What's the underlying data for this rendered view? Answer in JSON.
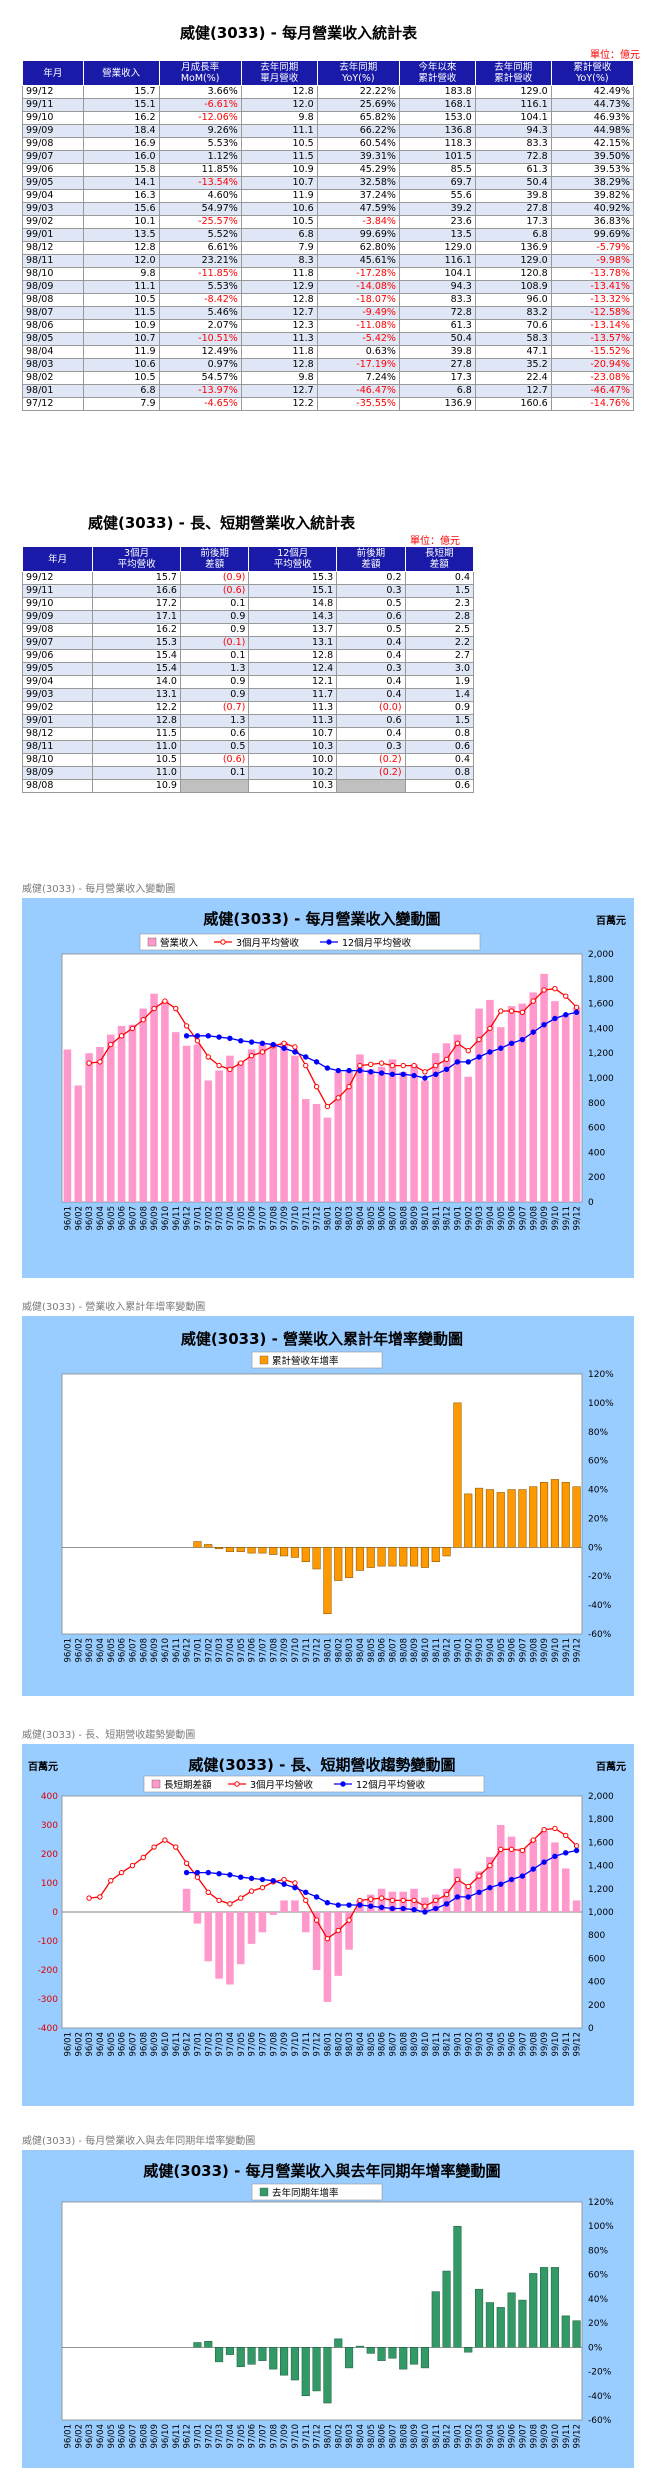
{
  "table1": {
    "title": "威健(3033) - 每月營業收入統計表",
    "unit": "單位：億元",
    "headers": [
      "年月",
      "營業收入",
      "月成長率\nMoM(%)",
      "去年同期\n單月營收",
      "去年同期\nYoY(%)",
      "今年以來\n累計營收",
      "去年同期\n累計營收",
      "累計營收\nYoY(%)"
    ],
    "rows": [
      [
        "99/12",
        "15.7",
        "3.66%",
        "12.8",
        "22.22%",
        "183.8",
        "129.0",
        "42.49%"
      ],
      [
        "99/11",
        "15.1",
        "-6.61%",
        "12.0",
        "25.69%",
        "168.1",
        "116.1",
        "44.73%"
      ],
      [
        "99/10",
        "16.2",
        "-12.06%",
        "9.8",
        "65.82%",
        "153.0",
        "104.1",
        "46.93%"
      ],
      [
        "99/09",
        "18.4",
        "9.26%",
        "11.1",
        "66.22%",
        "136.8",
        "94.3",
        "44.98%"
      ],
      [
        "99/08",
        "16.9",
        "5.53%",
        "10.5",
        "60.54%",
        "118.3",
        "83.3",
        "42.15%"
      ],
      [
        "99/07",
        "16.0",
        "1.12%",
        "11.5",
        "39.31%",
        "101.5",
        "72.8",
        "39.50%"
      ],
      [
        "99/06",
        "15.8",
        "11.85%",
        "10.9",
        "45.29%",
        "85.5",
        "61.3",
        "39.53%"
      ],
      [
        "99/05",
        "14.1",
        "-13.54%",
        "10.7",
        "32.58%",
        "69.7",
        "50.4",
        "38.29%"
      ],
      [
        "99/04",
        "16.3",
        "4.60%",
        "11.9",
        "37.24%",
        "55.6",
        "39.8",
        "39.82%"
      ],
      [
        "99/03",
        "15.6",
        "54.97%",
        "10.6",
        "47.59%",
        "39.2",
        "27.8",
        "40.92%"
      ],
      [
        "99/02",
        "10.1",
        "-25.57%",
        "10.5",
        "-3.84%",
        "23.6",
        "17.3",
        "36.83%"
      ],
      [
        "99/01",
        "13.5",
        "5.52%",
        "6.8",
        "99.69%",
        "13.5",
        "6.8",
        "99.69%"
      ],
      [
        "98/12",
        "12.8",
        "6.61%",
        "7.9",
        "62.80%",
        "129.0",
        "136.9",
        "-5.79%"
      ],
      [
        "98/11",
        "12.0",
        "23.21%",
        "8.3",
        "45.61%",
        "116.1",
        "129.0",
        "-9.98%"
      ],
      [
        "98/10",
        "9.8",
        "-11.85%",
        "11.8",
        "-17.28%",
        "104.1",
        "120.8",
        "-13.78%"
      ],
      [
        "98/09",
        "11.1",
        "5.53%",
        "12.9",
        "-14.08%",
        "94.3",
        "108.9",
        "-13.41%"
      ],
      [
        "98/08",
        "10.5",
        "-8.42%",
        "12.8",
        "-18.07%",
        "83.3",
        "96.0",
        "-13.32%"
      ],
      [
        "98/07",
        "11.5",
        "5.46%",
        "12.7",
        "-9.49%",
        "72.8",
        "83.2",
        "-12.58%"
      ],
      [
        "98/06",
        "10.9",
        "2.07%",
        "12.3",
        "-11.08%",
        "61.3",
        "70.6",
        "-13.14%"
      ],
      [
        "98/05",
        "10.7",
        "-10.51%",
        "11.3",
        "-5.42%",
        "50.4",
        "58.3",
        "-13.57%"
      ],
      [
        "98/04",
        "11.9",
        "12.49%",
        "11.8",
        "0.63%",
        "39.8",
        "47.1",
        "-15.52%"
      ],
      [
        "98/03",
        "10.6",
        "0.97%",
        "12.8",
        "-17.19%",
        "27.8",
        "35.2",
        "-20.94%"
      ],
      [
        "98/02",
        "10.5",
        "54.57%",
        "9.8",
        "7.24%",
        "17.3",
        "22.4",
        "-23.08%"
      ],
      [
        "98/01",
        "6.8",
        "-13.97%",
        "12.7",
        "-46.47%",
        "6.8",
        "12.7",
        "-46.47%"
      ],
      [
        "97/12",
        "7.9",
        "-4.65%",
        "12.2",
        "-35.55%",
        "136.9",
        "160.6",
        "-14.76%"
      ]
    ]
  },
  "table2": {
    "title": "威健(3033) - 長、短期營業收入統計表",
    "unit": "單位：億元",
    "headers": [
      "年月",
      "3個月\n平均營收",
      "前後期\n差額",
      "12個月\n平均營收",
      "前後期\n差額",
      "長短期\n差額"
    ],
    "rows": [
      [
        "99/12",
        "15.7",
        "(0.9)",
        "15.3",
        "0.2",
        "0.4"
      ],
      [
        "99/11",
        "16.6",
        "(0.6)",
        "15.1",
        "0.3",
        "1.5"
      ],
      [
        "99/10",
        "17.2",
        "0.1",
        "14.8",
        "0.5",
        "2.3"
      ],
      [
        "99/09",
        "17.1",
        "0.9",
        "14.3",
        "0.6",
        "2.8"
      ],
      [
        "99/08",
        "16.2",
        "0.9",
        "13.7",
        "0.5",
        "2.5"
      ],
      [
        "99/07",
        "15.3",
        "(0.1)",
        "13.1",
        "0.4",
        "2.2"
      ],
      [
        "99/06",
        "15.4",
        "0.1",
        "12.8",
        "0.4",
        "2.7"
      ],
      [
        "99/05",
        "15.4",
        "1.3",
        "12.4",
        "0.3",
        "3.0"
      ],
      [
        "99/04",
        "14.0",
        "0.9",
        "12.1",
        "0.4",
        "1.9"
      ],
      [
        "99/03",
        "13.1",
        "0.9",
        "11.7",
        "0.4",
        "1.4"
      ],
      [
        "99/02",
        "12.2",
        "(0.7)",
        "11.3",
        "(0.0)",
        "0.9"
      ],
      [
        "99/01",
        "12.8",
        "1.3",
        "11.3",
        "0.6",
        "1.5"
      ],
      [
        "98/12",
        "11.5",
        "0.6",
        "10.7",
        "0.4",
        "0.8"
      ],
      [
        "98/11",
        "11.0",
        "0.5",
        "10.3",
        "0.3",
        "0.6"
      ],
      [
        "98/10",
        "10.5",
        "(0.6)",
        "10.0",
        "(0.2)",
        "0.4"
      ],
      [
        "98/09",
        "11.0",
        "0.1",
        "10.2",
        "(0.2)",
        "0.8"
      ],
      [
        "98/08",
        "10.9",
        "",
        "10.3",
        "",
        "0.6"
      ]
    ]
  },
  "captions": {
    "c1": "威健(3033) - 每月營業收入變動圖",
    "c2": "威健(3033) -  營業收入累計年增率變動圖",
    "c3": "威健(3033) - 長、短期營收趨勢變動圖",
    "c4": "威健(3033) - 每月營業收入與去年同期年增率變動圖"
  },
  "chart_data": [
    {
      "type": "bar",
      "title": "威健(3033) - 每月營業收入變動圖",
      "unit_label": "百萬元",
      "categories": [
        "96/01",
        "96/02",
        "96/03",
        "96/04",
        "96/05",
        "96/06",
        "96/07",
        "96/08",
        "96/09",
        "96/10",
        "96/11",
        "96/12",
        "97/01",
        "97/02",
        "97/03",
        "97/04",
        "97/05",
        "97/06",
        "97/07",
        "97/08",
        "97/09",
        "97/10",
        "97/11",
        "97/12",
        "98/01",
        "98/02",
        "98/03",
        "98/04",
        "98/05",
        "98/06",
        "98/07",
        "98/08",
        "98/09",
        "98/10",
        "98/11",
        "98/12",
        "99/01",
        "99/02",
        "99/03",
        "99/04",
        "99/05",
        "99/06",
        "99/07",
        "99/08",
        "99/09",
        "99/10",
        "99/11",
        "99/12"
      ],
      "series": [
        {
          "name": "營業收入",
          "type": "bar",
          "color": "#ff99cc",
          "values": [
            1230,
            940,
            1200,
            1250,
            1350,
            1420,
            1430,
            1560,
            1680,
            1620,
            1370,
            1260,
            1270,
            980,
            1060,
            1180,
            1130,
            1230,
            1270,
            1280,
            1290,
            1180,
            830,
            790,
            680,
            1050,
            1060,
            1190,
            1070,
            1090,
            1150,
            1050,
            1110,
            980,
            1200,
            1280,
            1350,
            1010,
            1560,
            1630,
            1410,
            1580,
            1600,
            1690,
            1840,
            1620,
            1510,
            1570
          ]
        },
        {
          "name": "3個月平均營收",
          "type": "line",
          "color": "#ff0000",
          "values": [
            null,
            null,
            1120,
            1130,
            1270,
            1340,
            1400,
            1470,
            1560,
            1620,
            1560,
            1420,
            1300,
            1170,
            1100,
            1070,
            1120,
            1180,
            1210,
            1260,
            1280,
            1250,
            1100,
            930,
            770,
            840,
            930,
            1100,
            1110,
            1120,
            1100,
            1100,
            1100,
            1050,
            1100,
            1150,
            1280,
            1220,
            1310,
            1400,
            1540,
            1540,
            1530,
            1620,
            1710,
            1720,
            1660,
            1570
          ]
        },
        {
          "name": "12個月平均營收",
          "type": "line",
          "color": "#0000ff",
          "values": [
            null,
            null,
            null,
            null,
            null,
            null,
            null,
            null,
            null,
            null,
            null,
            1340,
            1340,
            1340,
            1330,
            1320,
            1300,
            1290,
            1280,
            1270,
            1240,
            1210,
            1170,
            1130,
            1080,
            1060,
            1060,
            1060,
            1050,
            1040,
            1030,
            1030,
            1020,
            1000,
            1030,
            1070,
            1130,
            1130,
            1170,
            1210,
            1240,
            1280,
            1310,
            1370,
            1430,
            1480,
            1510,
            1530
          ]
        }
      ],
      "ylim": [
        0,
        2000
      ],
      "yticks": [
        "2,000",
        "1,800",
        "1,600",
        "1,400",
        "1,200",
        "1,000",
        "800",
        "600",
        "400",
        "200",
        "0"
      ]
    },
    {
      "type": "bar",
      "title": "威健(3033) -  營業收入累計年增率變動圖",
      "categories": [
        "96/01",
        "96/02",
        "96/03",
        "96/04",
        "96/05",
        "96/06",
        "96/07",
        "96/08",
        "96/09",
        "96/10",
        "96/11",
        "96/12",
        "97/01",
        "97/02",
        "97/03",
        "97/04",
        "97/05",
        "97/06",
        "97/07",
        "97/08",
        "97/09",
        "97/10",
        "97/11",
        "97/12",
        "98/01",
        "98/02",
        "98/03",
        "98/04",
        "98/05",
        "98/06",
        "98/07",
        "98/08",
        "98/09",
        "98/10",
        "98/11",
        "98/12",
        "99/01",
        "99/02",
        "99/03",
        "99/04",
        "99/05",
        "99/06",
        "99/07",
        "99/08",
        "99/09",
        "99/10",
        "99/11",
        "99/12"
      ],
      "series": [
        {
          "name": "累計營收年增率",
          "color": "#ff9900",
          "values": [
            null,
            null,
            null,
            null,
            null,
            null,
            null,
            null,
            null,
            null,
            null,
            null,
            4,
            2,
            -1,
            -3,
            -3,
            -4,
            -4,
            -5,
            -6,
            -7,
            -10,
            -15,
            -46,
            -23,
            -21,
            -16,
            -14,
            -13,
            -13,
            -13,
            -13,
            -14,
            -10,
            -6,
            100,
            37,
            41,
            40,
            38,
            40,
            40,
            42,
            45,
            47,
            45,
            42
          ]
        }
      ],
      "ylim": [
        -60,
        120
      ],
      "yticks": [
        "120%",
        "100%",
        "80%",
        "60%",
        "40%",
        "20%",
        "0%",
        "-20%",
        "-40%",
        "-60%"
      ]
    },
    {
      "type": "bar",
      "title": "威健(3033) - 長、短期營收趨勢變動圖",
      "unit_label_left": "百萬元",
      "unit_label_right": "百萬元",
      "categories": [
        "96/01",
        "96/02",
        "96/03",
        "96/04",
        "96/05",
        "96/06",
        "96/07",
        "96/08",
        "96/09",
        "96/10",
        "96/11",
        "96/12",
        "97/01",
        "97/02",
        "97/03",
        "97/04",
        "97/05",
        "97/06",
        "97/07",
        "97/08",
        "97/09",
        "97/10",
        "97/11",
        "97/12",
        "98/01",
        "98/02",
        "98/03",
        "98/04",
        "98/05",
        "98/06",
        "98/07",
        "98/08",
        "98/09",
        "98/10",
        "98/11",
        "98/12",
        "99/01",
        "99/02",
        "99/03",
        "99/04",
        "99/05",
        "99/06",
        "99/07",
        "99/08",
        "99/09",
        "99/10",
        "99/11",
        "99/12"
      ],
      "series": [
        {
          "name": "長短期差額",
          "type": "bar",
          "axis": "left",
          "color": "#ff99cc",
          "values": [
            null,
            null,
            null,
            null,
            null,
            null,
            null,
            null,
            null,
            null,
            null,
            80,
            -40,
            -170,
            -230,
            -250,
            -180,
            -110,
            -70,
            -10,
            40,
            40,
            -70,
            -200,
            -310,
            -220,
            -130,
            40,
            60,
            80,
            70,
            70,
            80,
            50,
            60,
            80,
            150,
            90,
            140,
            190,
            300,
            260,
            220,
            250,
            280,
            240,
            150,
            40
          ]
        },
        {
          "name": "3個月平均營收",
          "type": "line",
          "axis": "right",
          "color": "#ff0000",
          "values": [
            null,
            null,
            1120,
            1130,
            1270,
            1340,
            1400,
            1470,
            1560,
            1620,
            1560,
            1420,
            1300,
            1170,
            1100,
            1070,
            1120,
            1180,
            1210,
            1260,
            1280,
            1250,
            1100,
            930,
            770,
            840,
            930,
            1100,
            1110,
            1120,
            1100,
            1100,
            1100,
            1050,
            1100,
            1150,
            1280,
            1220,
            1310,
            1400,
            1540,
            1540,
            1530,
            1620,
            1710,
            1720,
            1660,
            1570
          ]
        },
        {
          "name": "12個月平均營收",
          "type": "line",
          "axis": "right",
          "color": "#0000ff",
          "values": [
            null,
            null,
            null,
            null,
            null,
            null,
            null,
            null,
            null,
            null,
            null,
            1340,
            1340,
            1340,
            1330,
            1320,
            1300,
            1290,
            1280,
            1270,
            1240,
            1210,
            1170,
            1130,
            1080,
            1060,
            1060,
            1060,
            1050,
            1040,
            1030,
            1030,
            1020,
            1000,
            1030,
            1070,
            1130,
            1130,
            1170,
            1210,
            1240,
            1280,
            1310,
            1370,
            1430,
            1480,
            1510,
            1530
          ]
        }
      ],
      "ylim_left": [
        -400,
        400
      ],
      "ylim_right": [
        0,
        2000
      ],
      "yticks_left": [
        "400",
        "300",
        "200",
        "100",
        "0",
        "-100",
        "-200",
        "-300",
        "-400"
      ],
      "yticks_right": [
        "2,000",
        "1,800",
        "1,600",
        "1,400",
        "1,200",
        "1,000",
        "800",
        "600",
        "400",
        "200",
        "0"
      ]
    },
    {
      "type": "bar",
      "title": "威健(3033) - 每月營業收入與去年同期年增率變動圖",
      "categories": [
        "96/01",
        "96/02",
        "96/03",
        "96/04",
        "96/05",
        "96/06",
        "96/07",
        "96/08",
        "96/09",
        "96/10",
        "96/11",
        "96/12",
        "97/01",
        "97/02",
        "97/03",
        "97/04",
        "97/05",
        "97/06",
        "97/07",
        "97/08",
        "97/09",
        "97/10",
        "97/11",
        "97/12",
        "98/01",
        "98/02",
        "98/03",
        "98/04",
        "98/05",
        "98/06",
        "98/07",
        "98/08",
        "98/09",
        "98/10",
        "98/11",
        "98/12",
        "99/01",
        "99/02",
        "99/03",
        "99/04",
        "99/05",
        "99/06",
        "99/07",
        "99/08",
        "99/09",
        "99/10",
        "99/11",
        "99/12"
      ],
      "series": [
        {
          "name": "去年同期年增率",
          "color": "#339966",
          "values": [
            null,
            null,
            null,
            null,
            null,
            null,
            null,
            null,
            null,
            null,
            null,
            null,
            4,
            5,
            -12,
            -6,
            -16,
            -14,
            -11,
            -18,
            -23,
            -27,
            -40,
            -36,
            -46,
            7,
            -17,
            1,
            -5,
            -11,
            -9,
            -18,
            -14,
            -17,
            46,
            63,
            100,
            -4,
            48,
            37,
            33,
            45,
            39,
            61,
            66,
            66,
            26,
            22
          ]
        }
      ],
      "ylim": [
        -60,
        120
      ],
      "yticks": [
        "120%",
        "100%",
        "80%",
        "60%",
        "40%",
        "20%",
        "0%",
        "-20%",
        "-40%",
        "-60%"
      ]
    }
  ]
}
